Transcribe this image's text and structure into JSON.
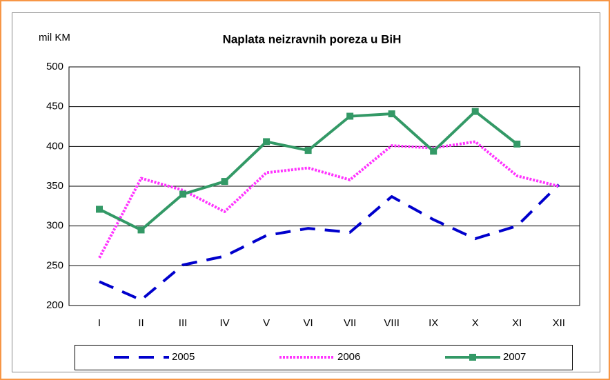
{
  "chart_data": {
    "type": "line",
    "title": "Naplata neizravnih poreza u BiH",
    "y_label": "mil KM",
    "categories": [
      "I",
      "II",
      "III",
      "IV",
      "V",
      "VI",
      "VII",
      "VIII",
      "IX",
      "X",
      "XI",
      "XII"
    ],
    "series": [
      {
        "name": "2005",
        "color": "#0000cc",
        "dash": "dashed",
        "marker": "none",
        "values": [
          230,
          207,
          251,
          262,
          288,
          297,
          292,
          337,
          308,
          284,
          300,
          352
        ]
      },
      {
        "name": "2006",
        "color": "#ff33ff",
        "dash": "dotted",
        "marker": "none",
        "values": [
          260,
          360,
          345,
          318,
          367,
          373,
          358,
          401,
          398,
          406,
          363,
          350
        ]
      },
      {
        "name": "2007",
        "color": "#339966",
        "dash": "solid",
        "marker": "square",
        "values": [
          321,
          295,
          340,
          356,
          406,
          395,
          438,
          441,
          394,
          444,
          403,
          null
        ]
      }
    ],
    "ylim": [
      200,
      500
    ],
    "yticks": [
      200,
      250,
      300,
      350,
      400,
      450,
      500
    ],
    "grid": true,
    "legend": "bottom"
  }
}
